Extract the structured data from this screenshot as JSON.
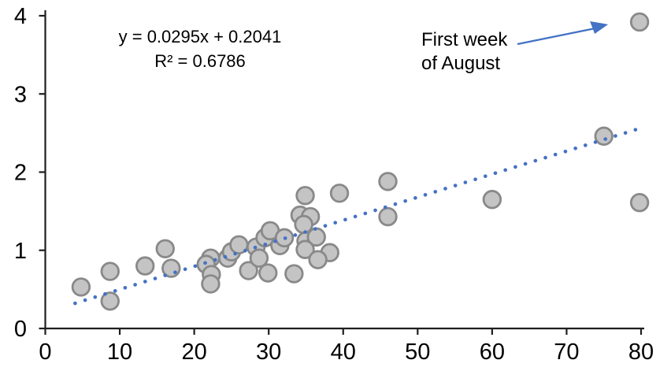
{
  "chart_data": {
    "type": "scatter",
    "title": "",
    "xlabel": "",
    "ylabel": "",
    "axes": {
      "x": {
        "min": 0,
        "max": 80,
        "ticks": [
          0,
          10,
          20,
          30,
          40,
          50,
          60,
          70,
          80
        ]
      },
      "y": {
        "min": 0,
        "max": 4,
        "ticks": [
          0,
          1,
          2,
          3,
          4
        ]
      },
      "grid": false
    },
    "points": [
      {
        "x": 4.8,
        "y": 0.53
      },
      {
        "x": 8.7,
        "y": 0.73
      },
      {
        "x": 8.7,
        "y": 0.35
      },
      {
        "x": 13.4,
        "y": 0.8
      },
      {
        "x": 16.1,
        "y": 1.02
      },
      {
        "x": 16.9,
        "y": 0.77
      },
      {
        "x": 22.2,
        "y": 0.9
      },
      {
        "x": 21.6,
        "y": 0.82
      },
      {
        "x": 22.3,
        "y": 0.69
      },
      {
        "x": 22.2,
        "y": 0.57
      },
      {
        "x": 24.5,
        "y": 0.9
      },
      {
        "x": 25.0,
        "y": 0.98
      },
      {
        "x": 26.0,
        "y": 1.07
      },
      {
        "x": 27.3,
        "y": 0.74
      },
      {
        "x": 28.3,
        "y": 1.04
      },
      {
        "x": 28.7,
        "y": 0.9
      },
      {
        "x": 29.5,
        "y": 1.16
      },
      {
        "x": 30.2,
        "y": 1.25
      },
      {
        "x": 29.9,
        "y": 0.71
      },
      {
        "x": 31.5,
        "y": 1.06
      },
      {
        "x": 32.1,
        "y": 1.16
      },
      {
        "x": 33.4,
        "y": 0.7
      },
      {
        "x": 34.9,
        "y": 1.7
      },
      {
        "x": 34.2,
        "y": 1.45
      },
      {
        "x": 35.6,
        "y": 1.43
      },
      {
        "x": 34.7,
        "y": 1.33
      },
      {
        "x": 35.0,
        "y": 1.12
      },
      {
        "x": 36.4,
        "y": 1.17
      },
      {
        "x": 34.9,
        "y": 1.01
      },
      {
        "x": 38.2,
        "y": 0.97
      },
      {
        "x": 36.6,
        "y": 0.88
      },
      {
        "x": 39.5,
        "y": 1.73
      },
      {
        "x": 46.0,
        "y": 1.88
      },
      {
        "x": 46.0,
        "y": 1.43
      },
      {
        "x": 60.0,
        "y": 1.65
      },
      {
        "x": 75.0,
        "y": 2.46
      },
      {
        "x": 79.8,
        "y": 1.61
      },
      {
        "x": 79.8,
        "y": 3.92
      }
    ],
    "trendline": {
      "slope": 0.0295,
      "intercept": 0.2041,
      "r_squared": 0.6786,
      "x_start": 4.0,
      "x_end": 80.3,
      "equation_label": "y = 0.0295x + 0.2041",
      "r2_label": "R² = 0.6786",
      "style": "dotted"
    },
    "annotation": {
      "line1": "First week",
      "line2": "of August",
      "points_to": {
        "x": 79.8,
        "y": 3.92
      }
    },
    "legend": "none",
    "colors": {
      "trend": "#4472C4",
      "arrow": "#4472C4",
      "marker_fill": "#C4C4C4",
      "marker_stroke": "#898989",
      "axis": "#1f1f1f",
      "text": "#000000"
    }
  }
}
